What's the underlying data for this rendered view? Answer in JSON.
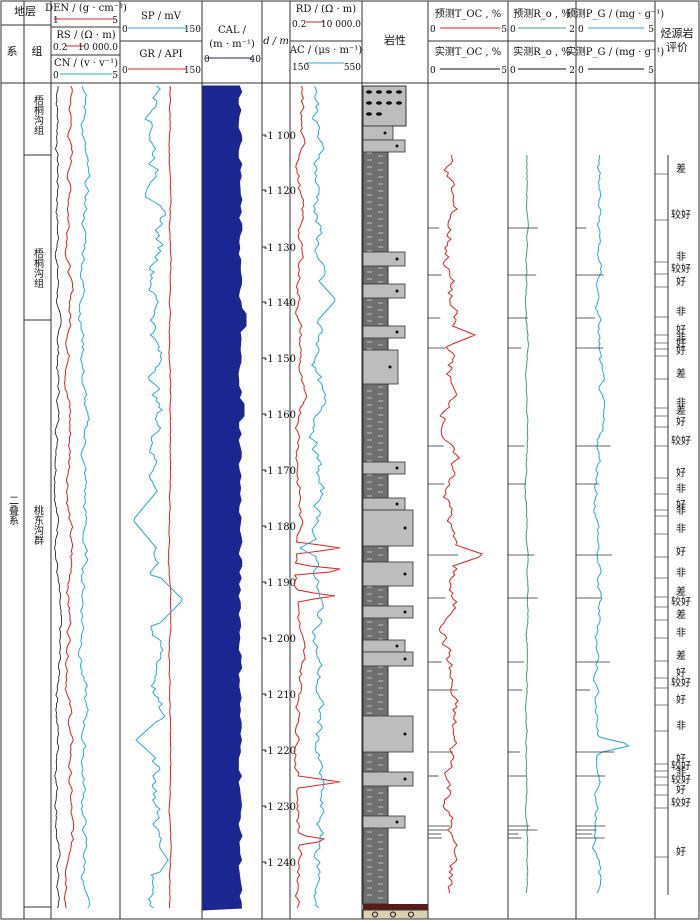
{
  "header": {
    "stratum": "地层",
    "system": "系",
    "group": "组",
    "den": "DEN / (g · cm⁻³)",
    "den_min": "1",
    "den_max": "5",
    "rs": "RS / (Ω · m)",
    "rs_min": "0.2",
    "rs_max": "10 000.0",
    "cn": "CN / (v · v⁻¹)",
    "cn_min": "0",
    "cn_max": "5",
    "sp": "SP / mV",
    "sp_min": "0",
    "sp_max": "150",
    "gr": "GR / API",
    "gr_min": "0",
    "gr_max": "150",
    "cal": "CAL /",
    "cal_unit": "(m · m⁻¹)",
    "cal_min": "0",
    "cal_max": "40",
    "depth": "d / m",
    "rd": "RD / (Ω · m)",
    "rd_min": "0.2",
    "rd_max": "10 000.0",
    "ac": "AC / (μs · m⁻¹)",
    "ac_min": "150",
    "ac_max": "550",
    "lithology": "岩性",
    "toc_pred": "预测T_OC , %",
    "toc_meas": "实测T_OC , %",
    "toc_min": "0",
    "toc_max": "5",
    "ro_pred": "预测R_o , %",
    "ro_meas": "实测R_o , %",
    "ro_min": "0",
    "ro_max": "2",
    "pg_pred": "预测P_G / (mg · g⁻¹)",
    "pg_meas": "实测P_G / (mg · g⁻¹)",
    "pg_min": "0",
    "pg_max": "5",
    "eval": "烃源岩",
    "eval2": "评价"
  },
  "strata": {
    "system_name": "二叠系",
    "group1": "梧桐沟组",
    "group2": "梧桐沟组",
    "group3": "桃东沟群"
  },
  "depth_ticks": [
    "-1 100",
    "-1 120",
    "-1 130",
    "-1 140",
    "-1 150",
    "-1 160",
    "-1 170",
    "-1 180",
    "-1 190",
    "-1 200",
    "-1 210",
    "-1 220",
    "-1 230",
    "-1 240"
  ],
  "evaluation": [
    "差",
    "较好",
    "非",
    "较好",
    "好",
    "非",
    "好",
    "非",
    "好",
    "好",
    "差",
    "非",
    "差",
    "好",
    "较好",
    "好",
    "非",
    "好",
    "非",
    "非",
    "好",
    "非",
    "差",
    "较好",
    "差",
    "非",
    "差",
    "好",
    "较好",
    "好",
    "非",
    "好",
    "较好",
    "非",
    "较好",
    "好",
    "较好",
    "好"
  ],
  "colors": {
    "den": "#e02020",
    "cn": "#2aa8d8",
    "sp": "#2aa8d8",
    "gr": "#e02020",
    "cal": "#1c2690",
    "rd": "#e02020",
    "ac": "#2aa8d8",
    "toc": "#e02020",
    "ro": "#3aa860",
    "pg": "#2aa8d8",
    "litho_dark": "#707070",
    "litho_light": "#bdbdbd"
  }
}
